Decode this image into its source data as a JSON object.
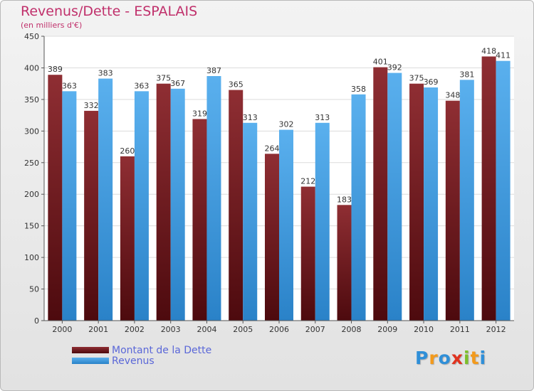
{
  "chart_data": {
    "type": "bar",
    "title": "Revenus/Dette - ESPALAIS",
    "subtitle": "(en milliers d'€)",
    "categories": [
      "2000",
      "2001",
      "2002",
      "2003",
      "2004",
      "2005",
      "2006",
      "2007",
      "2008",
      "2009",
      "2010",
      "2011",
      "2012"
    ],
    "series": [
      {
        "name": "Montant de la Dette",
        "color": "#7a1d22",
        "values": [
          389,
          332,
          260,
          375,
          319,
          365,
          264,
          212,
          183,
          401,
          375,
          348,
          418
        ]
      },
      {
        "name": "Revenus",
        "color": "#3a9be0",
        "values": [
          363,
          383,
          363,
          367,
          387,
          313,
          302,
          313,
          358,
          392,
          369,
          381,
          411
        ]
      }
    ],
    "ylim": [
      0,
      450
    ],
    "yticks": [
      0,
      50,
      100,
      150,
      200,
      250,
      300,
      350,
      400,
      450
    ],
    "grid": true,
    "legend_position": "bottom-left"
  },
  "logo_text": "Proxiti"
}
